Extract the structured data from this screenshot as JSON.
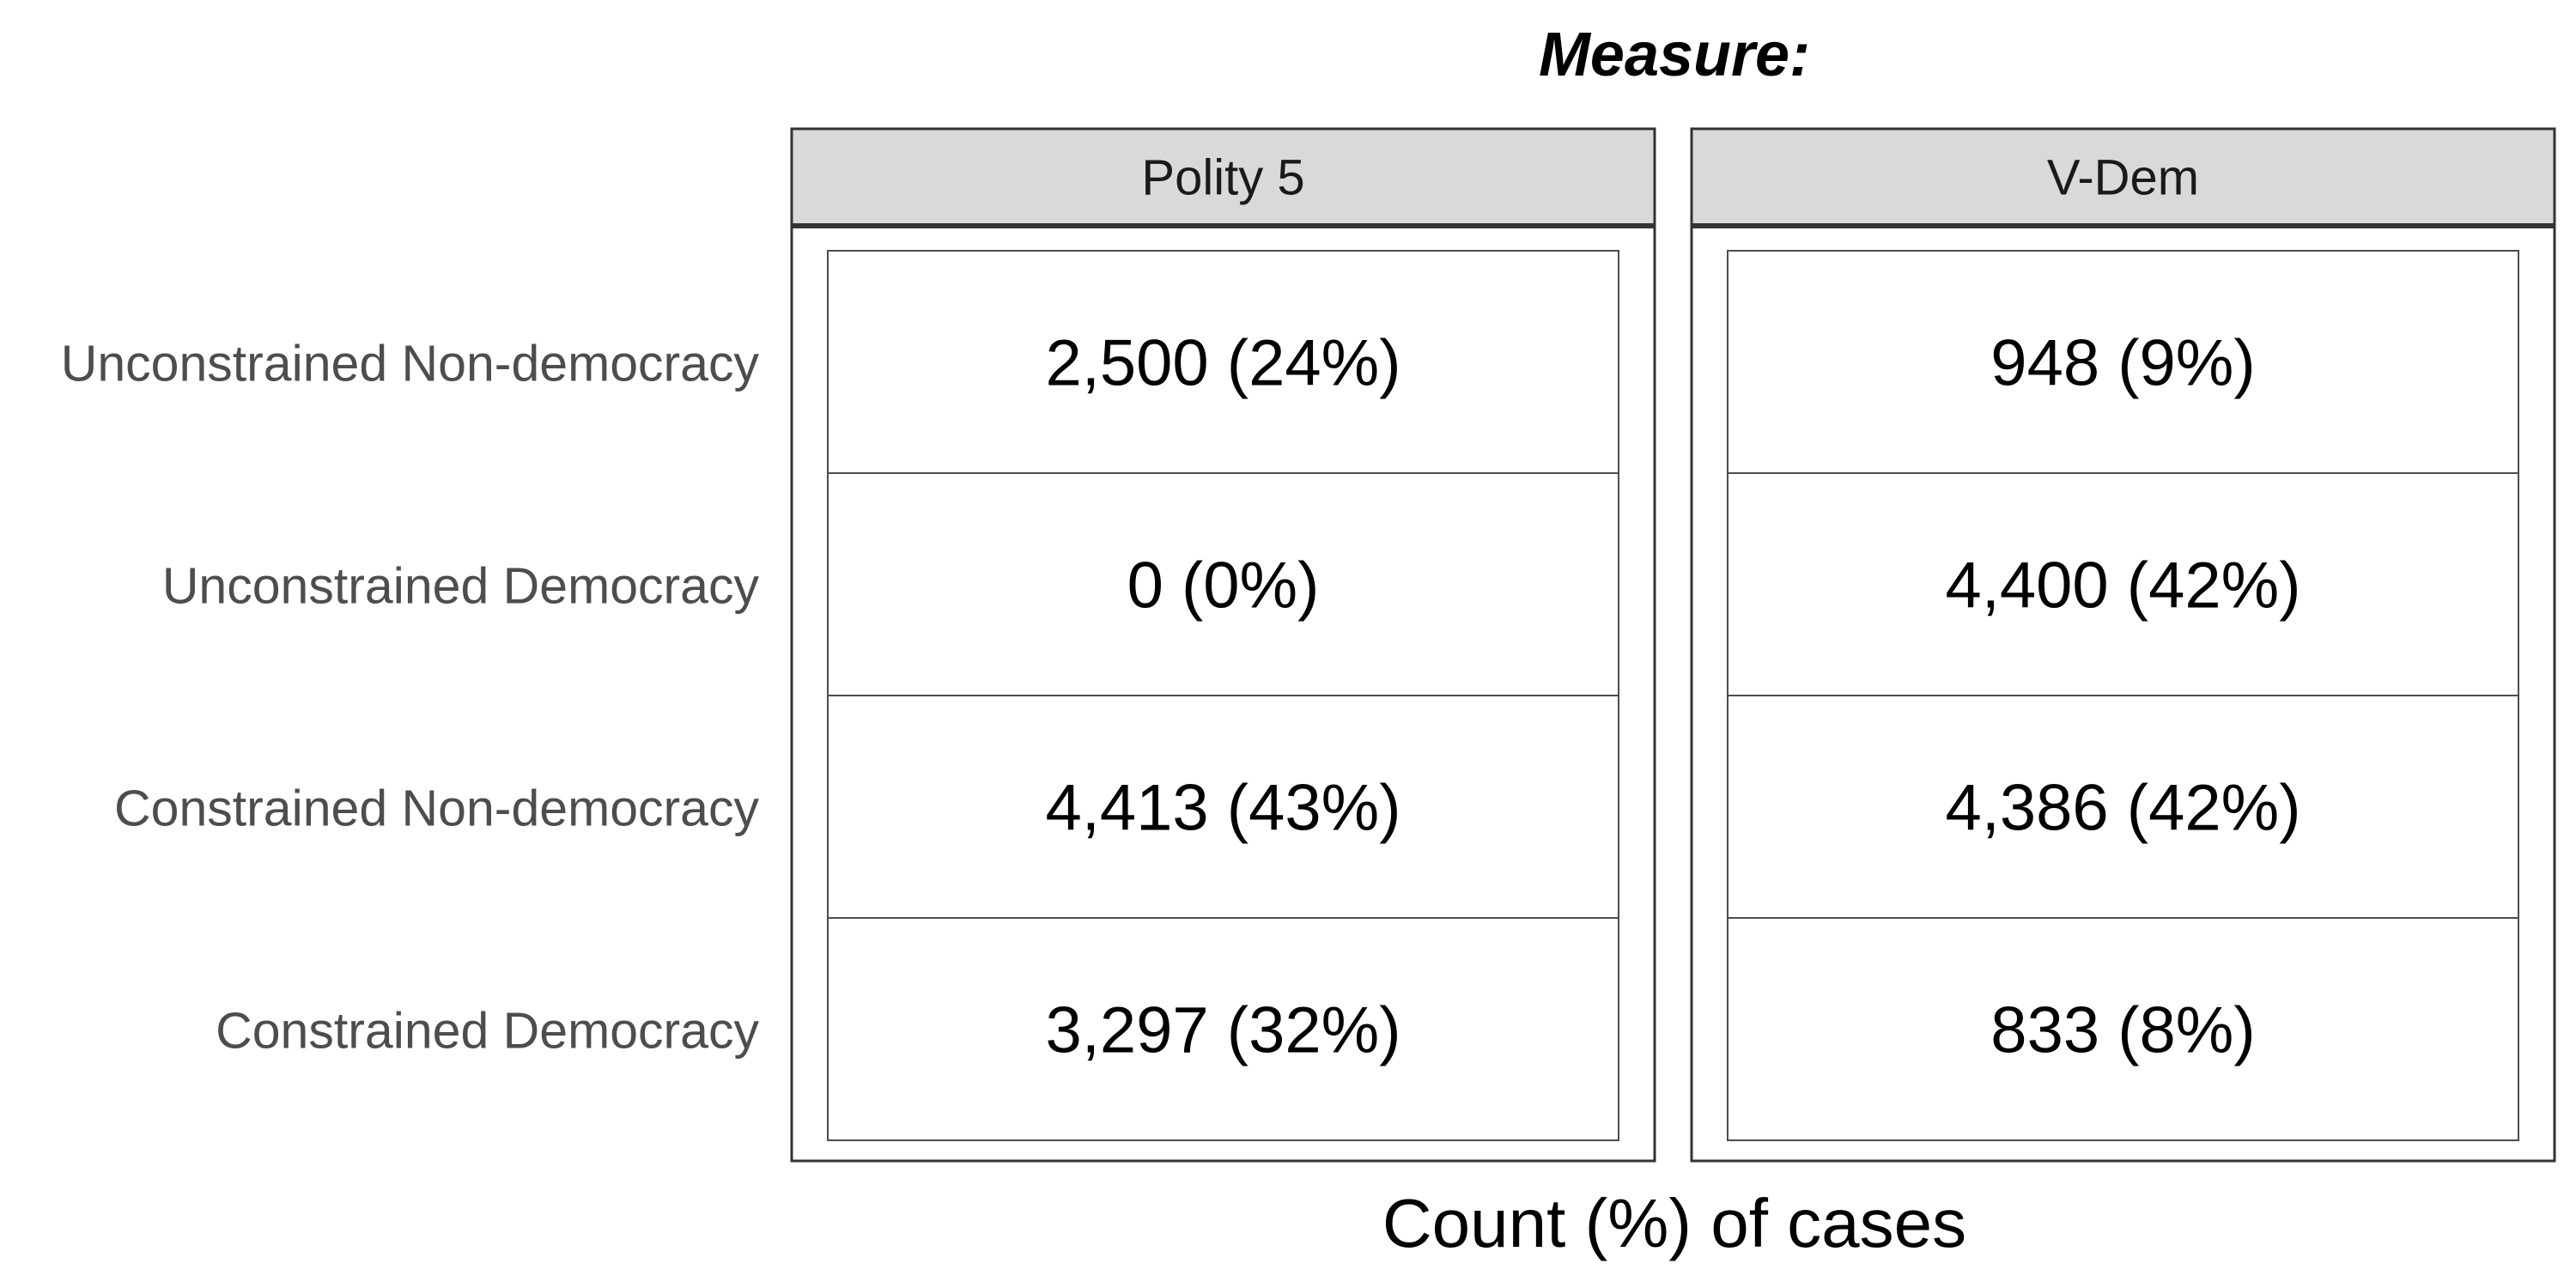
{
  "chart_data": {
    "type": "table",
    "title": "Measure:",
    "xlabel": "Count (%) of cases",
    "ylabel": "",
    "facets": [
      "Polity 5",
      "V-Dem"
    ],
    "rows": [
      "Unconstrained Non-democracy",
      "Unconstrained Democracy",
      "Constrained Non-democracy",
      "Constrained Democracy"
    ],
    "cells": [
      [
        "2,500 (24%)",
        "948 (9%)"
      ],
      [
        "0 (0%)",
        "4,400 (42%)"
      ],
      [
        "4,413 (43%)",
        "4,386 (42%)"
      ],
      [
        "3,297 (32%)",
        "833 (8%)"
      ]
    ],
    "values": [
      [
        2500,
        948
      ],
      [
        0,
        4400
      ],
      [
        4413,
        4386
      ],
      [
        3297,
        833
      ]
    ],
    "percents": [
      [
        24,
        9
      ],
      [
        0,
        42
      ],
      [
        43,
        42
      ],
      [
        32,
        8
      ]
    ],
    "colors": {
      "strip_fill": "#d9d9d9",
      "border": "#333333",
      "cell_border": "#4d4d4d",
      "row_label": "#4d4d4d",
      "text": "#000000"
    }
  }
}
